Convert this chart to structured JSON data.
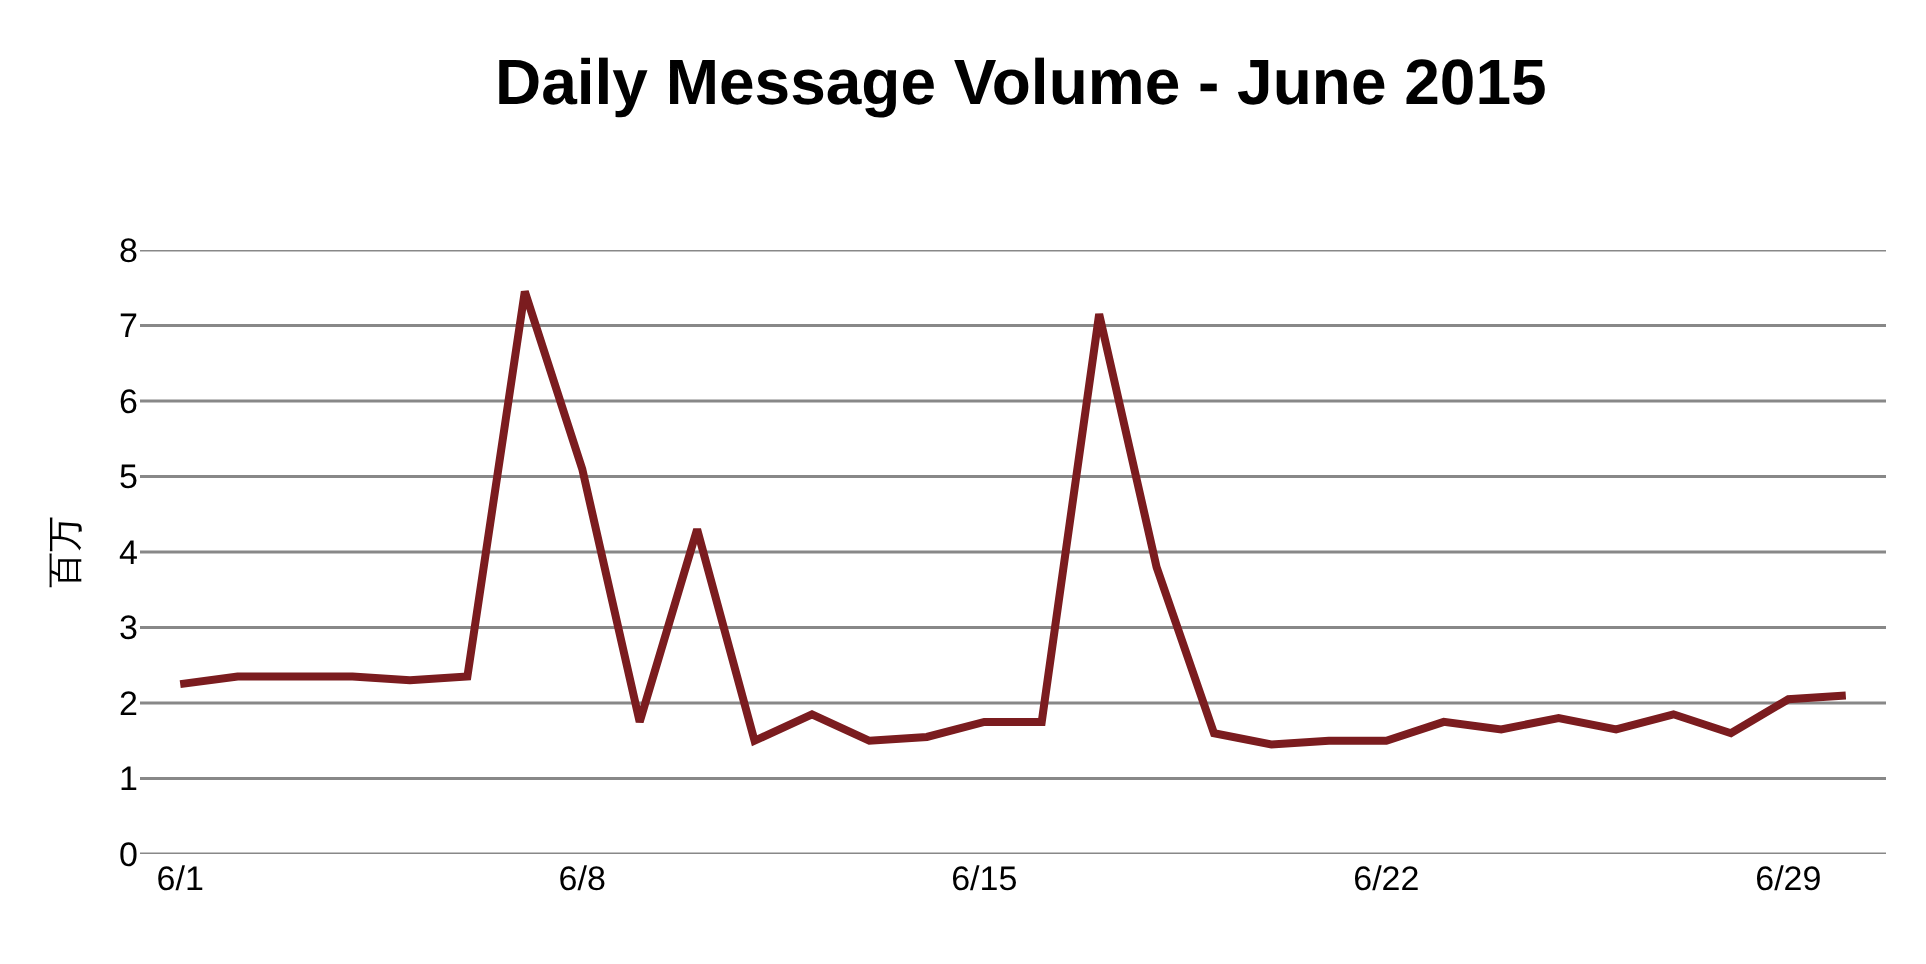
{
  "chart_data": {
    "type": "line",
    "title": "Daily Message Volume - June 2015",
    "ylabel": "百万",
    "categories": [
      "6/1",
      null,
      null,
      null,
      null,
      null,
      null,
      "6/8",
      null,
      null,
      null,
      null,
      null,
      null,
      "6/15",
      null,
      null,
      null,
      null,
      null,
      null,
      "6/22",
      null,
      null,
      null,
      null,
      null,
      null,
      "6/29",
      null
    ],
    "series": [
      {
        "color": "#7b1c1f",
        "values": [
          2.25,
          2.35,
          2.35,
          2.35,
          2.3,
          2.35,
          7.45,
          5.1,
          1.75,
          4.3,
          1.5,
          1.85,
          1.5,
          1.55,
          1.75,
          1.75,
          7.15,
          3.8,
          1.6,
          1.45,
          1.5,
          1.5,
          1.75,
          1.65,
          1.8,
          1.65,
          1.85,
          1.6,
          2.05,
          2.1
        ]
      }
    ],
    "ylim": [
      0,
      8
    ],
    "yticks": [
      0,
      1,
      2,
      3,
      4,
      5,
      6,
      7,
      8
    ],
    "grid": "y",
    "marker": "none",
    "line_style": "solid"
  }
}
